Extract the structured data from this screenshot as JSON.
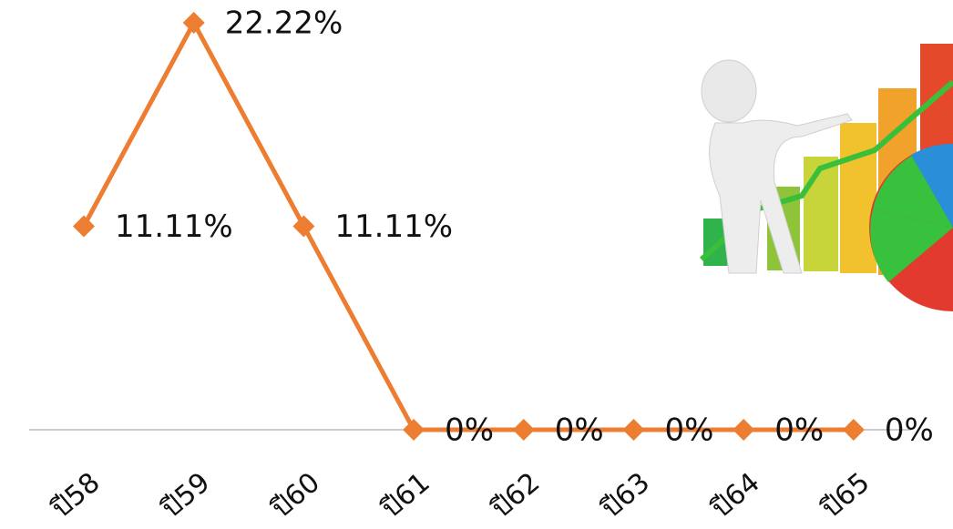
{
  "chart_data": {
    "type": "line",
    "categories": [
      "ปี58",
      "ปี59",
      "ปี60",
      "ปี61",
      "ปี62",
      "ปี63",
      "ปี64",
      "ปี65"
    ],
    "values": [
      11.11,
      22.22,
      11.11,
      0,
      0,
      0,
      0,
      0
    ],
    "value_labels": [
      "11.11%",
      "22.22%",
      "11.11%",
      "0%",
      "0%",
      "0%",
      "0%",
      "0%"
    ],
    "color": "#ed7d31"
  }
}
